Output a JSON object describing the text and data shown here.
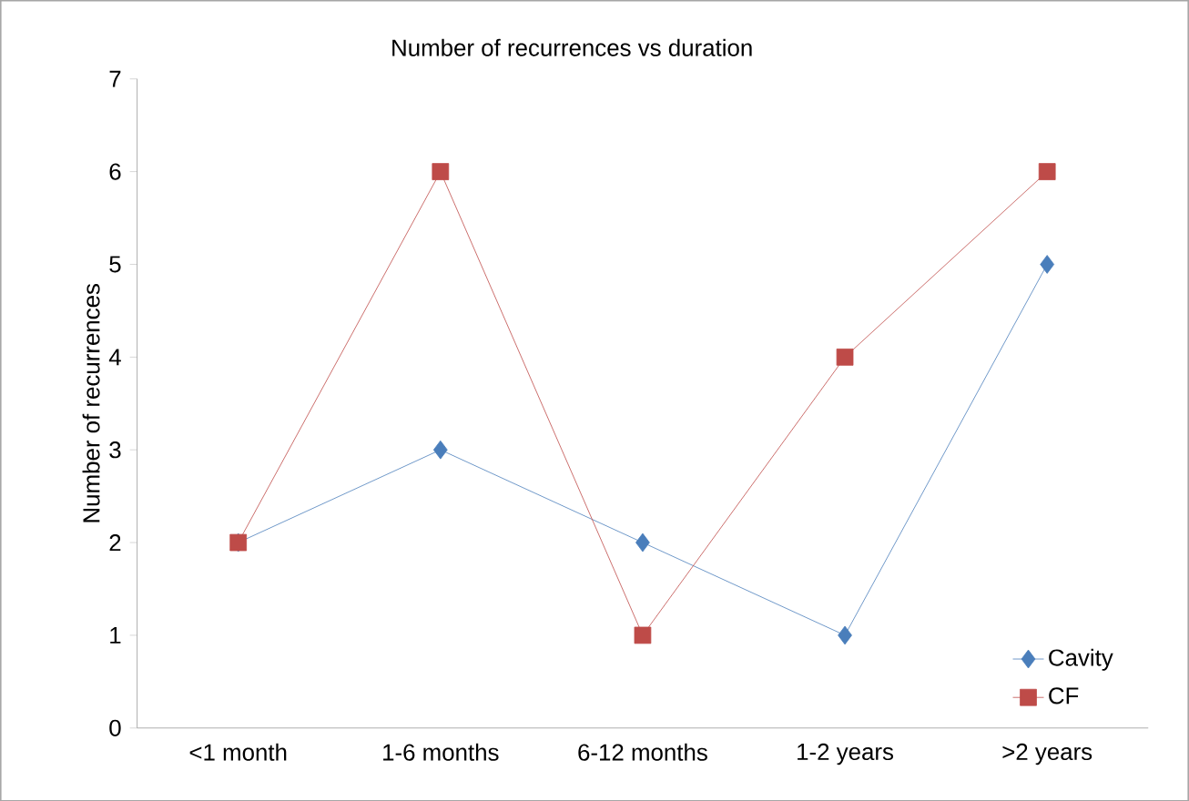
{
  "chart_data": {
    "type": "line",
    "title": "Number of recurrences vs duration",
    "ylabel": "Number of recurrences",
    "categories": [
      "<1 month",
      "1-6 months",
      "6-12 months",
      "1-2 years",
      ">2 years"
    ],
    "series": [
      {
        "name": "Cavity",
        "color": "#4a7ebb",
        "marker": "diamond",
        "values": [
          2,
          3,
          2,
          1,
          5
        ]
      },
      {
        "name": "CF",
        "color": "#be4b48",
        "marker": "square",
        "values": [
          2,
          6,
          1,
          4,
          6
        ]
      }
    ],
    "ylim": [
      0,
      7
    ],
    "yticks": [
      0,
      1,
      2,
      3,
      4,
      5,
      6,
      7
    ],
    "grid": false,
    "legend": "right",
    "line_style": "solid"
  }
}
